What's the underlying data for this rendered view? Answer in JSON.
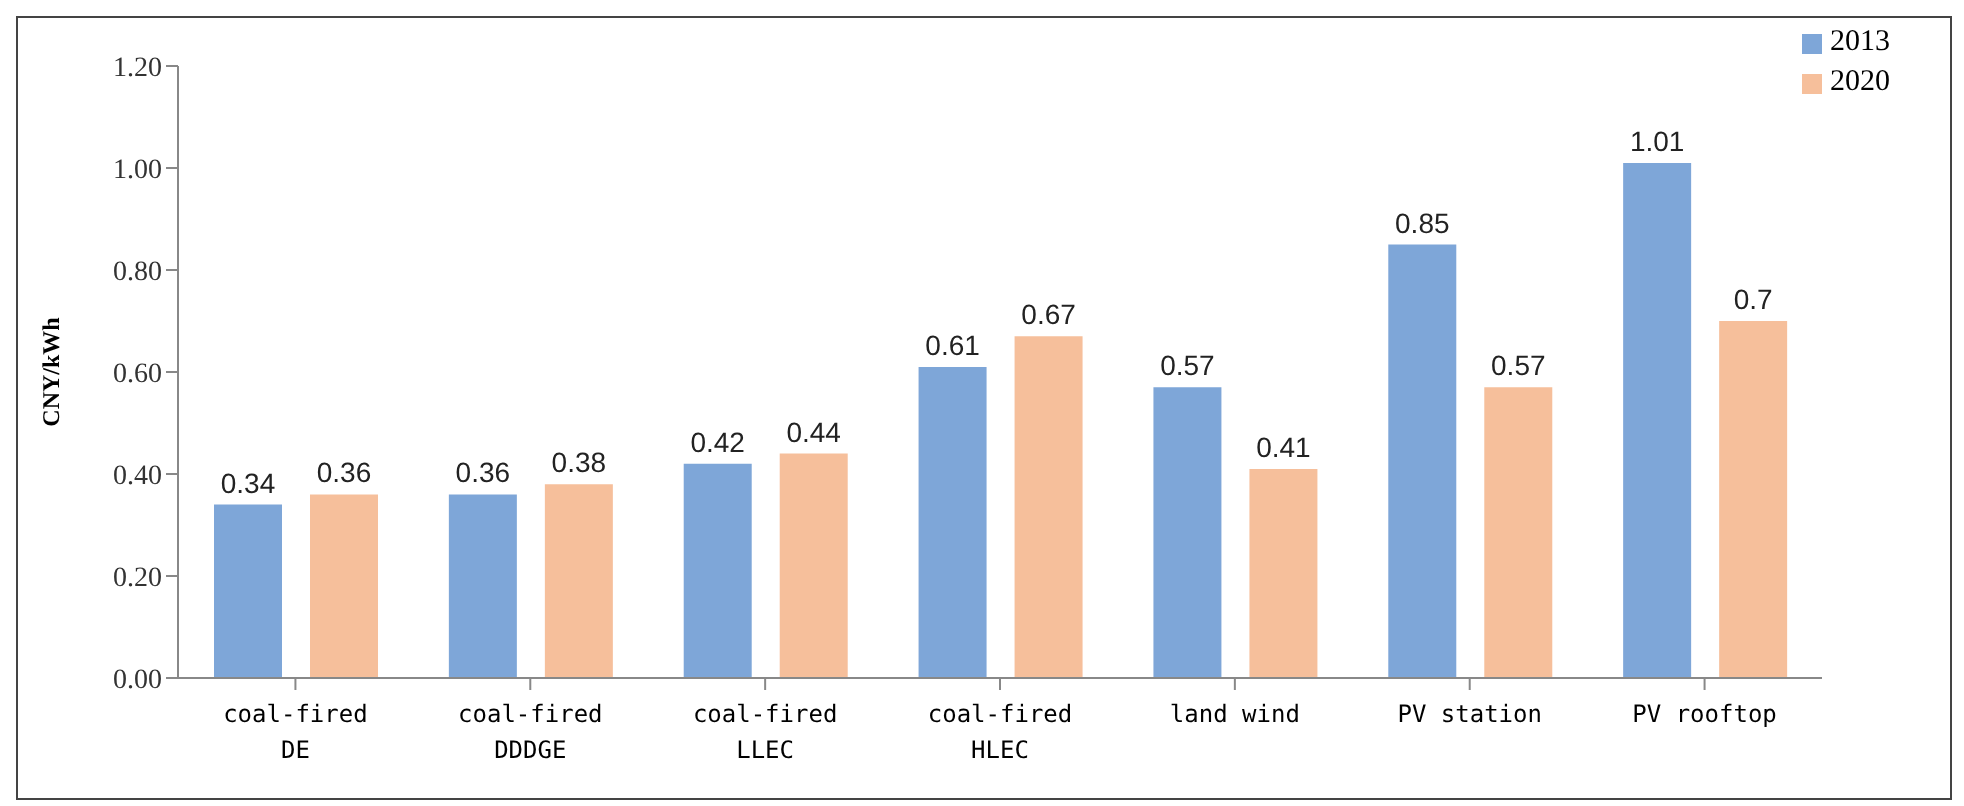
{
  "chart_data": {
    "type": "bar",
    "ylabel": "CNY/kWh",
    "categories": [
      "coal-fired\nDE",
      "coal-fired\nDDDGE",
      "coal-fired\nLLEC",
      "coal-fired\nHLEC",
      "land wind",
      "PV station",
      "PV rooftop"
    ],
    "series": [
      {
        "name": "2013",
        "color": "#7ea6d8",
        "values": [
          0.34,
          0.36,
          0.42,
          0.61,
          0.57,
          0.85,
          1.01
        ]
      },
      {
        "name": "2020",
        "color": "#f6bf9b",
        "values": [
          0.36,
          0.38,
          0.44,
          0.67,
          0.41,
          0.57,
          0.7
        ]
      }
    ],
    "ylim": [
      0,
      1.2
    ],
    "yticks": [
      {
        "value": 0,
        "label": "0.00"
      },
      {
        "value": 0.2,
        "label": "0.20"
      },
      {
        "value": 0.4,
        "label": "0.40"
      },
      {
        "value": 0.6,
        "label": "0.60"
      },
      {
        "value": 0.8,
        "label": "0.80"
      },
      {
        "value": 1,
        "label": "1.00"
      },
      {
        "value": 1.2,
        "label": "1.20"
      }
    ],
    "data_labels": true,
    "grid": false,
    "legend": "top right"
  }
}
